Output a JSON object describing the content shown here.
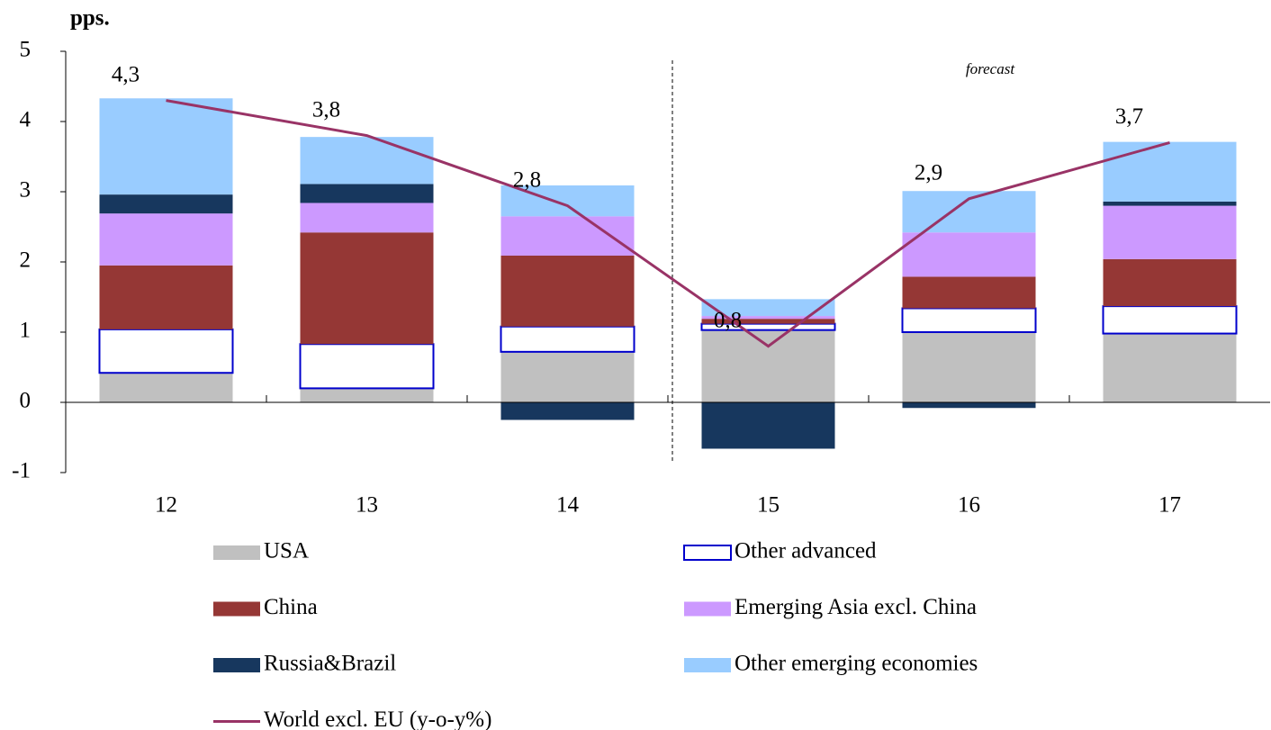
{
  "chart_data": {
    "type": "stacked-bar-line",
    "title": "pps.",
    "annotation": "forecast",
    "categories": [
      "12",
      "13",
      "14",
      "15",
      "16",
      "17"
    ],
    "ylim": [
      -1,
      5
    ],
    "yticks": [
      -1,
      0,
      1,
      2,
      3,
      4,
      5
    ],
    "series": [
      {
        "name": "USA",
        "color": "#c0c0c0",
        "values": [
          0.42,
          0.2,
          0.72,
          1.03,
          1.0,
          0.98
        ]
      },
      {
        "name": "Other advanced",
        "color": "#ffffff",
        "stroke": "#0000cc",
        "values": [
          0.62,
          0.63,
          0.36,
          0.09,
          0.34,
          0.39
        ]
      },
      {
        "name": "China",
        "color": "#953735",
        "values": [
          0.91,
          1.59,
          1.01,
          0.07,
          0.45,
          0.67
        ]
      },
      {
        "name": "Emerging Asia excl. China",
        "color": "#cc99ff",
        "values": [
          0.74,
          0.42,
          0.56,
          0.04,
          0.63,
          0.76
        ]
      },
      {
        "name": "Russia&Brazil",
        "color": "#17375e",
        "values": [
          0.27,
          0.27,
          -0.25,
          -0.66,
          -0.08,
          0.06
        ]
      },
      {
        "name": "Other emerging economies",
        "color": "#99ccff",
        "values": [
          1.37,
          0.67,
          0.44,
          0.24,
          0.59,
          0.85
        ]
      },
      {
        "name": "World excl. EU (y-o-y%)",
        "color": "#993366",
        "line": true,
        "values": [
          4.3,
          3.8,
          2.8,
          0.8,
          2.9,
          3.7
        ],
        "value_labels": [
          "4,3",
          "3,8",
          "2,8",
          "0,8",
          "2,9",
          "3,7"
        ]
      }
    ]
  }
}
